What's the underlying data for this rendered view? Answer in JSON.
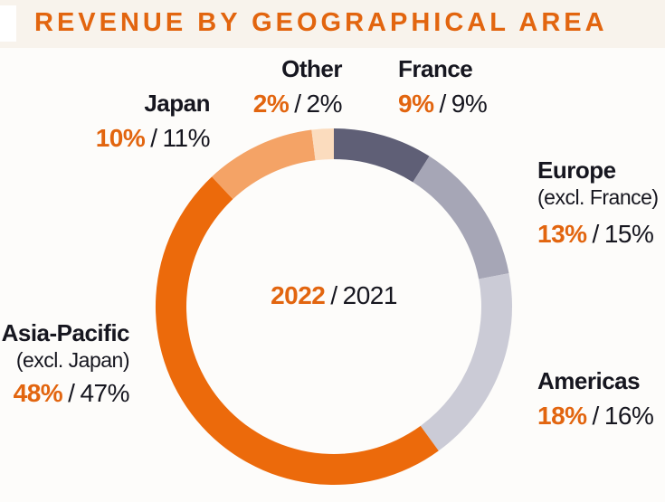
{
  "title": "REVENUE BY GEOGRAPHICAL AREA",
  "colors": {
    "accent": "#E2650F",
    "dark_text": "#16161F",
    "header_strip": "#F8F3EC"
  },
  "center": {
    "year_current": "2022",
    "separator": "/",
    "year_previous": "2021"
  },
  "value_separator": "/",
  "chart_data": {
    "type": "pie",
    "subtype": "donut",
    "title": "Revenue by geographical area",
    "series_labels": [
      "2022",
      "2021"
    ],
    "start": "12-o-clock",
    "direction": "clockwise",
    "segments": [
      {
        "name": "France",
        "sub": "",
        "pct_2022": 9,
        "pct_2021": 9,
        "label_2022": "9%",
        "label_2021": "9%",
        "color": "#5F5F76"
      },
      {
        "name": "Europe",
        "sub": "(excl. France)",
        "pct_2022": 13,
        "pct_2021": 15,
        "label_2022": "13%",
        "label_2021": "15%",
        "color": "#A6A6B6"
      },
      {
        "name": "Americas",
        "sub": "",
        "pct_2022": 18,
        "pct_2021": 16,
        "label_2022": "18%",
        "label_2021": "16%",
        "color": "#CBCBD6"
      },
      {
        "name": "Asia-Pacific",
        "sub": "(excl. Japan)",
        "pct_2022": 48,
        "pct_2021": 47,
        "label_2022": "48%",
        "label_2021": "47%",
        "color": "#EC6A0B"
      },
      {
        "name": "Japan",
        "sub": "",
        "pct_2022": 10,
        "pct_2021": 11,
        "label_2022": "10%",
        "label_2021": "11%",
        "color": "#F4A366"
      },
      {
        "name": "Other",
        "sub": "",
        "pct_2022": 2,
        "pct_2021": 2,
        "label_2022": "2%",
        "label_2021": "2%",
        "color": "#FBDCBE"
      }
    ]
  }
}
